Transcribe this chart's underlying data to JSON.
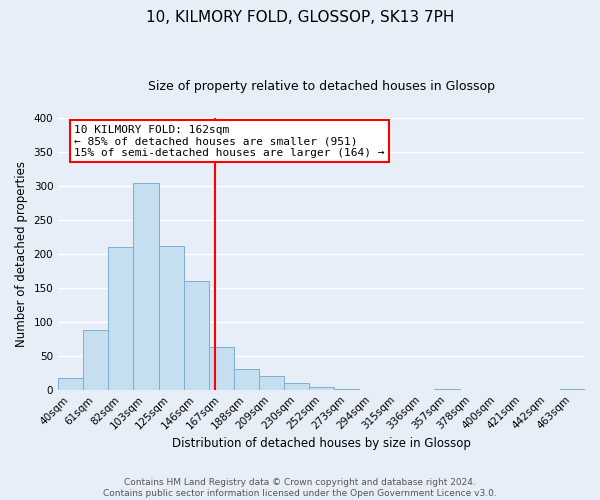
{
  "title": "10, KILMORY FOLD, GLOSSOP, SK13 7PH",
  "subtitle": "Size of property relative to detached houses in Glossop",
  "xlabel": "Distribution of detached houses by size in Glossop",
  "ylabel": "Number of detached properties",
  "bin_labels": [
    "40sqm",
    "61sqm",
    "82sqm",
    "103sqm",
    "125sqm",
    "146sqm",
    "167sqm",
    "188sqm",
    "209sqm",
    "230sqm",
    "252sqm",
    "273sqm",
    "294sqm",
    "315sqm",
    "336sqm",
    "357sqm",
    "378sqm",
    "400sqm",
    "421sqm",
    "442sqm",
    "463sqm"
  ],
  "bar_heights": [
    17,
    88,
    210,
    304,
    212,
    160,
    63,
    30,
    20,
    10,
    4,
    1,
    0,
    0,
    0,
    1,
    0,
    0,
    0,
    0,
    1
  ],
  "bar_color": "#c5dff0",
  "bar_edge_color": "#7ab0d4",
  "vline_color": "red",
  "annotation_text": "10 KILMORY FOLD: 162sqm\n← 85% of detached houses are smaller (951)\n15% of semi-detached houses are larger (164) →",
  "annotation_box_color": "white",
  "annotation_box_edge": "red",
  "ylim": [
    0,
    400
  ],
  "yticks": [
    0,
    50,
    100,
    150,
    200,
    250,
    300,
    350,
    400
  ],
  "footer_line1": "Contains HM Land Registry data © Crown copyright and database right 2024.",
  "footer_line2": "Contains public sector information licensed under the Open Government Licence v3.0.",
  "bg_color": "#e8eef8",
  "plot_bg_color": "#e8eef8",
  "grid_color": "#ffffff",
  "title_fontsize": 11,
  "subtitle_fontsize": 9,
  "axis_label_fontsize": 8.5,
  "tick_fontsize": 7.5,
  "annotation_fontsize": 8,
  "footer_fontsize": 6.5
}
